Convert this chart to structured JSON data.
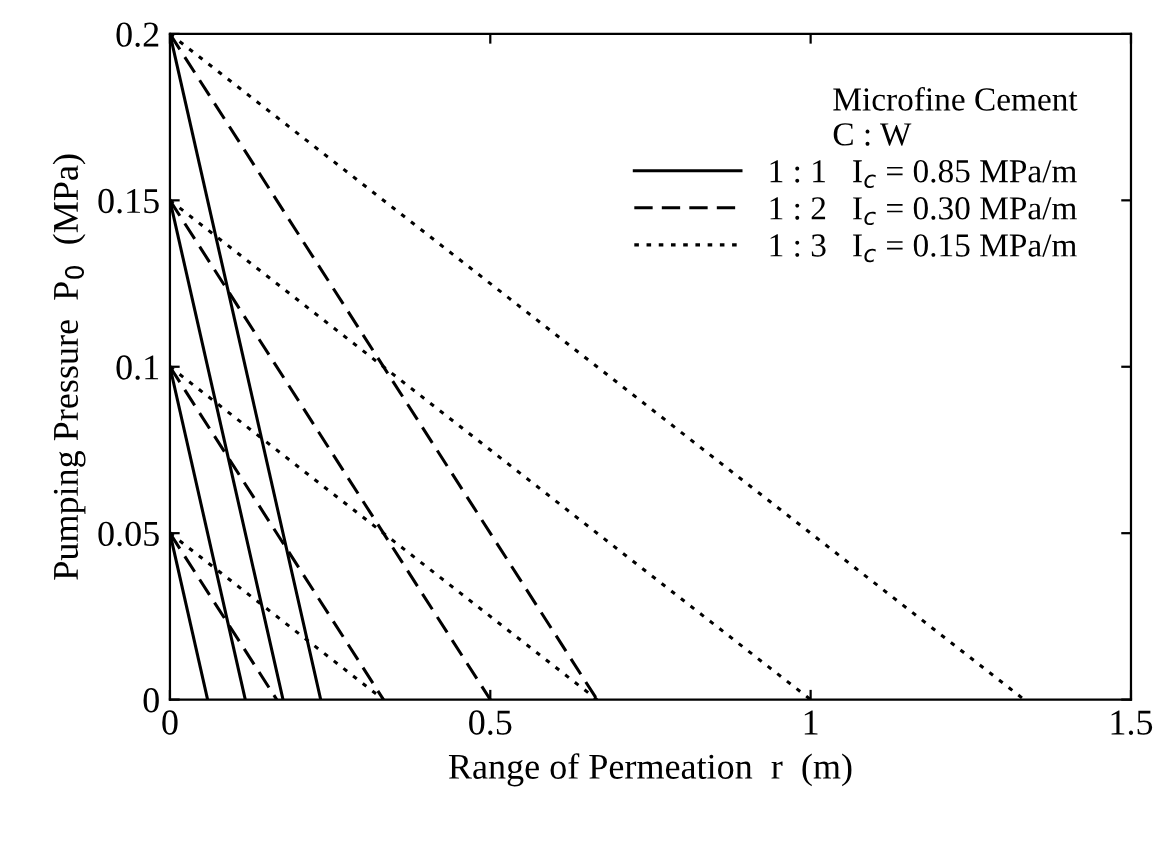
{
  "chart_data": {
    "type": "line",
    "xlabel": "Range of Permeation  r  (m)",
    "ylabel": "Pumping Pressure  P$_{0}$  (MPa)",
    "legend_title": "Microfine Cement\nC : W",
    "xlim": [
      0,
      1.5
    ],
    "xticks": [
      0,
      0.5,
      1,
      1.5
    ],
    "ylim": [
      0,
      0.2
    ],
    "yticks": [
      0,
      0.05,
      0.1,
      0.15,
      0.2
    ],
    "grid": false,
    "legend": "top right",
    "marker": "none",
    "series": [
      {
        "name": "1 : 1   I$_{c}$ = 0.85 MPa/m",
        "color": "#000000",
        "line_style": "solid",
        "x": [
          0,
          0.0588
        ],
        "values": [
          0.05,
          0
        ]
      },
      {
        "color": "#000000",
        "line_style": "solid",
        "x": [
          0,
          0.1176
        ],
        "values": [
          0.1,
          0
        ]
      },
      {
        "color": "#000000",
        "line_style": "solid",
        "x": [
          0,
          0.1765
        ],
        "values": [
          0.15,
          0
        ]
      },
      {
        "color": "#000000",
        "line_style": "solid",
        "x": [
          0,
          0.2353
        ],
        "values": [
          0.2,
          0
        ]
      },
      {
        "name": "1 : 2   I$_{c}$ = 0.30 MPa/m",
        "color": "#000000",
        "line_style": "dashed",
        "x": [
          0,
          0.1667
        ],
        "values": [
          0.05,
          0
        ]
      },
      {
        "color": "#000000",
        "line_style": "dashed",
        "x": [
          0,
          0.3333
        ],
        "values": [
          0.1,
          0
        ]
      },
      {
        "color": "#000000",
        "line_style": "dashed",
        "x": [
          0,
          0.5
        ],
        "values": [
          0.15,
          0
        ]
      },
      {
        "color": "#000000",
        "line_style": "dashed",
        "x": [
          0,
          0.6667
        ],
        "values": [
          0.2,
          0
        ]
      },
      {
        "name": "1 : 3   I$_{c}$ = 0.15 MPa/m",
        "color": "#000000",
        "line_style": "dotted",
        "x": [
          0,
          0.3333
        ],
        "values": [
          0.05,
          0
        ]
      },
      {
        "color": "#000000",
        "line_style": "dotted",
        "x": [
          0,
          0.6667
        ],
        "values": [
          0.1,
          0
        ]
      },
      {
        "color": "#000000",
        "line_style": "dotted",
        "x": [
          0,
          1.0
        ],
        "values": [
          0.15,
          0
        ]
      },
      {
        "color": "#000000",
        "line_style": "dotted",
        "x": [
          0,
          1.3333
        ],
        "values": [
          0.2,
          0
        ]
      }
    ]
  }
}
